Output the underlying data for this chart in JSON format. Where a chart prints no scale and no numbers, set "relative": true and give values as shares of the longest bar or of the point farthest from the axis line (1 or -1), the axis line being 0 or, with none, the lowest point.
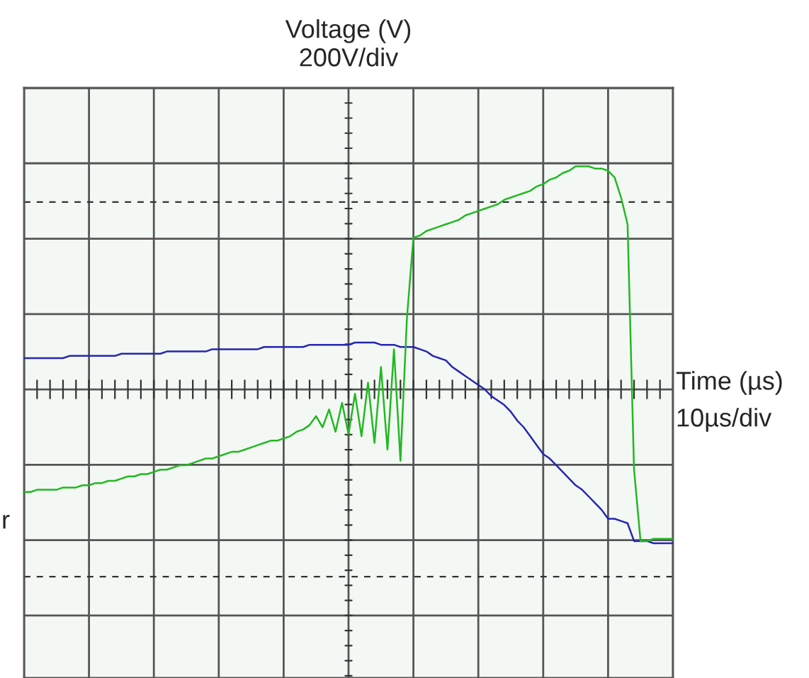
{
  "chart_data": {
    "type": "line",
    "relative": true,
    "title": "Voltage (V)",
    "subtitle": "200V/div",
    "xlabel": "Time (µs)",
    "annotations": [
      "10µs/div",
      "r"
    ],
    "grid": true,
    "ref_lines": [
      {
        "axis": "y",
        "value": 0.84,
        "color": "#333333",
        "line_style": "dashed"
      },
      {
        "axis": "y",
        "value": -0.84,
        "color": "#333333",
        "line_style": "dashed"
      }
    ],
    "categories": [
      null,
      null,
      null,
      null,
      null,
      null,
      null,
      null,
      null,
      null,
      null,
      null,
      null,
      null,
      null,
      null,
      null,
      null,
      null,
      null,
      null,
      null,
      null,
      null,
      null,
      null,
      null,
      null,
      null,
      null,
      null,
      null,
      null,
      null,
      null,
      null,
      null,
      null,
      null,
      null,
      null,
      null,
      null,
      null,
      null,
      null,
      null,
      null,
      null,
      null,
      null,
      null,
      null,
      null,
      null,
      null,
      null,
      null,
      null,
      null,
      null,
      null,
      null,
      null,
      null,
      null,
      null,
      null,
      null,
      null,
      null,
      null,
      null,
      null,
      null,
      null,
      null,
      null,
      null,
      null,
      null,
      null,
      null,
      null,
      null,
      null,
      null,
      null,
      null,
      null,
      null,
      null,
      null,
      null,
      null,
      null,
      null,
      null,
      null,
      null,
      null
    ],
    "series": [
      {
        "color": "#2626b0",
        "values": [
          0.14,
          0.14,
          0.14,
          0.14,
          0.14,
          0.14,
          0.14,
          0.15,
          0.15,
          0.15,
          0.15,
          0.15,
          0.15,
          0.15,
          0.15,
          0.16,
          0.16,
          0.16,
          0.16,
          0.16,
          0.16,
          0.16,
          0.17,
          0.17,
          0.17,
          0.17,
          0.17,
          0.17,
          0.17,
          0.18,
          0.18,
          0.18,
          0.18,
          0.18,
          0.18,
          0.18,
          0.18,
          0.19,
          0.19,
          0.19,
          0.19,
          0.19,
          0.19,
          0.19,
          0.2,
          0.2,
          0.2,
          0.2,
          0.2,
          0.2,
          0.2,
          0.21,
          0.21,
          0.21,
          0.21,
          0.2,
          0.2,
          0.2,
          0.19,
          0.19,
          0.19,
          0.18,
          0.17,
          0.15,
          0.14,
          0.13,
          0.1,
          0.08,
          0.06,
          0.04,
          0.02,
          0.0,
          -0.03,
          -0.05,
          -0.07,
          -0.1,
          -0.14,
          -0.17,
          -0.21,
          -0.25,
          -0.29,
          -0.31,
          -0.34,
          -0.37,
          -0.4,
          -0.43,
          -0.45,
          -0.48,
          -0.51,
          -0.54,
          -0.58,
          -0.58,
          -0.59,
          -0.6,
          -0.68,
          -0.68,
          -0.68,
          -0.69,
          -0.69,
          -0.69,
          -0.69
        ]
      },
      {
        "color": "#22b822",
        "values": [
          -0.46,
          -0.46,
          -0.45,
          -0.45,
          -0.45,
          -0.45,
          -0.44,
          -0.44,
          -0.44,
          -0.43,
          -0.43,
          -0.42,
          -0.42,
          -0.41,
          -0.41,
          -0.4,
          -0.39,
          -0.39,
          -0.38,
          -0.38,
          -0.37,
          -0.36,
          -0.36,
          -0.35,
          -0.34,
          -0.34,
          -0.33,
          -0.32,
          -0.31,
          -0.31,
          -0.3,
          -0.29,
          -0.28,
          -0.28,
          -0.27,
          -0.26,
          -0.25,
          -0.24,
          -0.23,
          -0.23,
          -0.22,
          -0.21,
          -0.19,
          -0.18,
          -0.16,
          -0.12,
          -0.17,
          -0.09,
          -0.19,
          -0.06,
          -0.2,
          -0.02,
          -0.21,
          0.03,
          -0.24,
          0.1,
          -0.27,
          0.18,
          -0.32,
          0.32,
          0.68,
          0.69,
          0.71,
          0.72,
          0.73,
          0.74,
          0.75,
          0.76,
          0.78,
          0.79,
          0.8,
          0.81,
          0.82,
          0.83,
          0.85,
          0.86,
          0.87,
          0.88,
          0.89,
          0.91,
          0.92,
          0.94,
          0.95,
          0.97,
          0.98,
          1.0,
          1.0,
          1.0,
          0.99,
          0.99,
          0.98,
          0.95,
          0.86,
          0.74,
          -0.36,
          -0.68,
          -0.68,
          -0.67,
          -0.67,
          -0.67,
          -0.67
        ]
      }
    ]
  }
}
